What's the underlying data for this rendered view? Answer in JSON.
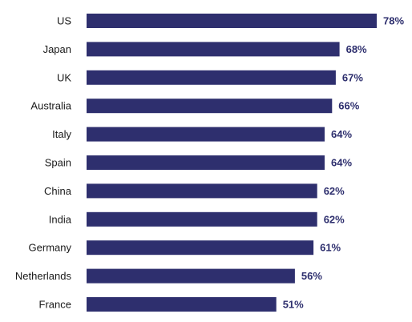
{
  "chart_data": {
    "type": "bar",
    "orientation": "horizontal",
    "categories": [
      "US",
      "Japan",
      "UK",
      "Australia",
      "Italy",
      "Spain",
      "China",
      "India",
      "Germany",
      "Netherlands",
      "France"
    ],
    "values": [
      78,
      68,
      67,
      66,
      64,
      64,
      62,
      62,
      61,
      56,
      51
    ],
    "value_labels": [
      "78%",
      "68%",
      "67%",
      "66%",
      "64%",
      "64%",
      "62%",
      "62%",
      "61%",
      "56%",
      "51%"
    ],
    "unit": "%",
    "xlim": [
      0,
      78
    ],
    "grid": false,
    "legend": "none",
    "bar_color": "#2e2f6e",
    "value_label_color": "#2e2f6e"
  }
}
